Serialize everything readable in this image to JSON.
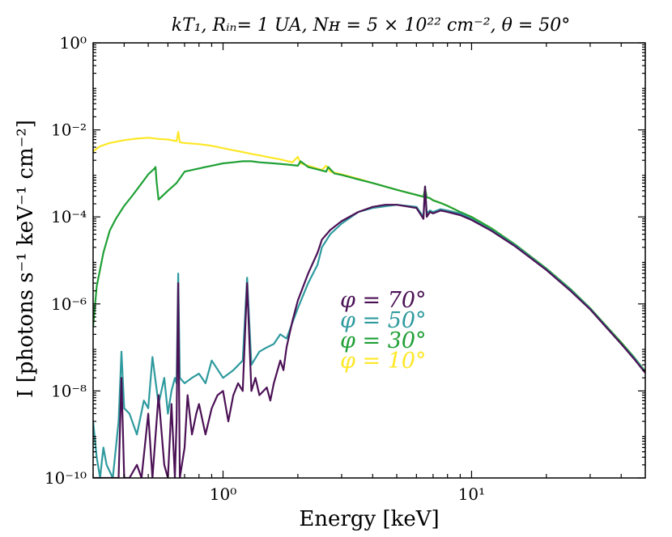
{
  "chart_data": {
    "type": "line",
    "title": "kT₁, Rᵢₙ= 1 UA, Nʜ = 5 × 10²² cm⁻², θ = 50°",
    "xlabel": "Energy [keV]",
    "ylabel": "I [photons s⁻¹ keV⁻¹ cm⁻²]",
    "xscale": "log",
    "yscale": "log",
    "xlim": [
      0.3,
      50
    ],
    "ylim": [
      1e-10,
      1
    ],
    "x_ticks": [
      {
        "value": 1,
        "label": "10⁰"
      },
      {
        "value": 10,
        "label": "10¹"
      }
    ],
    "y_ticks": [
      {
        "value": 1,
        "label": "10⁰"
      },
      {
        "value": 0.01,
        "label": "10⁻²"
      },
      {
        "value": 0.0001,
        "label": "10⁻⁴"
      },
      {
        "value": 1e-06,
        "label": "10⁻⁶"
      },
      {
        "value": 1e-08,
        "label": "10⁻⁸"
      },
      {
        "value": 1e-10,
        "label": "10⁻¹⁰"
      }
    ],
    "legend_position": "center",
    "series": [
      {
        "name": "φ = 10°",
        "color": "#fde725",
        "x": [
          0.3,
          0.32,
          0.35,
          0.4,
          0.45,
          0.5,
          0.55,
          0.6,
          0.65,
          0.66,
          0.67,
          0.7,
          0.8,
          0.9,
          1.0,
          1.1,
          1.2,
          1.3,
          1.4,
          1.5,
          1.7,
          1.9,
          2.0,
          2.05,
          2.2,
          2.5,
          2.6,
          2.7,
          3.0,
          3.5,
          4.0,
          5.0,
          6.0,
          6.4,
          6.5,
          6.6,
          6.8,
          7.0,
          7.5,
          8.0,
          9.0,
          10,
          12,
          15,
          20,
          25,
          30,
          35,
          40,
          45,
          50
        ],
        "y": [
          0.0032,
          0.0042,
          0.005,
          0.0058,
          0.0063,
          0.0066,
          0.0062,
          0.006,
          0.0055,
          0.009,
          0.0052,
          0.005,
          0.0047,
          0.0043,
          0.0038,
          0.0034,
          0.0031,
          0.0028,
          0.0026,
          0.0024,
          0.0021,
          0.0018,
          0.0024,
          0.0017,
          0.0015,
          0.0012,
          0.0015,
          0.0011,
          0.00095,
          0.00075,
          0.0006,
          0.00042,
          0.00032,
          0.00029,
          0.00045,
          0.00028,
          0.00027,
          0.00024,
          0.00021,
          0.00018,
          0.00013,
          0.0001,
          5.5e-05,
          2.3e-05,
          6.5e-06,
          2.2e-06,
          8e-07,
          3e-07,
          1.3e-07,
          6e-08,
          2.8e-08
        ]
      },
      {
        "name": "φ = 30°",
        "color": "#1fa035",
        "x": [
          0.3,
          0.31,
          0.33,
          0.35,
          0.37,
          0.4,
          0.43,
          0.46,
          0.5,
          0.53,
          0.535,
          0.54,
          0.55,
          0.6,
          0.65,
          0.7,
          0.8,
          0.9,
          1.0,
          1.1,
          1.2,
          1.3,
          1.4,
          1.6,
          1.8,
          2.0,
          2.05,
          2.2,
          2.6,
          2.65,
          2.8,
          3.0,
          3.5,
          4.0,
          5.0,
          6.0,
          6.4,
          6.5,
          6.6,
          6.8,
          7.0,
          7.5,
          8.0,
          9.0,
          10,
          12,
          15,
          20,
          25,
          30,
          35,
          40,
          45,
          50
        ],
        "y": [
          3e-07,
          2.5e-06,
          1.5e-05,
          4.8e-05,
          9e-05,
          0.00018,
          0.0003,
          0.0005,
          0.00095,
          0.0013,
          0.0014,
          0.00065,
          0.00025,
          0.0004,
          0.0006,
          0.0011,
          0.0013,
          0.0015,
          0.0017,
          0.0018,
          0.0019,
          0.0019,
          0.0018,
          0.0017,
          0.0016,
          0.0015,
          0.0019,
          0.0014,
          0.0011,
          0.0014,
          0.001,
          0.00092,
          0.00073,
          0.0006,
          0.00042,
          0.00032,
          0.00029,
          0.00045,
          0.00028,
          0.00027,
          0.00024,
          0.00021,
          0.00018,
          0.00013,
          0.0001,
          5.5e-05,
          2.3e-05,
          6.5e-06,
          2.2e-06,
          8e-07,
          3e-07,
          1.3e-07,
          6e-08,
          2.8e-08
        ]
      },
      {
        "name": "φ = 50°",
        "color": "#2e9a9e",
        "x": [
          0.3,
          0.31,
          0.32,
          0.33,
          0.34,
          0.36,
          0.38,
          0.39,
          0.4,
          0.42,
          0.45,
          0.48,
          0.5,
          0.52,
          0.55,
          0.58,
          0.6,
          0.62,
          0.64,
          0.65,
          0.66,
          0.67,
          0.7,
          0.75,
          0.8,
          0.85,
          0.9,
          1.0,
          1.1,
          1.2,
          1.25,
          1.3,
          1.4,
          1.5,
          1.6,
          1.7,
          1.8,
          2.0,
          2.2,
          2.4,
          2.5,
          2.7,
          3.0,
          3.5,
          4.0,
          5.0,
          6.0,
          6.4,
          6.5,
          6.6,
          6.8,
          7.0,
          7.5,
          8.0,
          9.0,
          10,
          12,
          15,
          20,
          25,
          30,
          35,
          40,
          45,
          50
        ],
        "y": [
          2e-09,
          3e-10,
          1e-10,
          5e-10,
          2e-10,
          1e-10,
          2e-09,
          8e-08,
          4e-09,
          3e-09,
          1e-09,
          6e-09,
          4e-09,
          6e-08,
          5e-09,
          2e-08,
          3e-09,
          1e-08,
          2e-08,
          1.5e-08,
          5e-06,
          2e-08,
          1.5e-08,
          2e-08,
          2.5e-08,
          1.5e-08,
          5e-08,
          2e-08,
          3e-08,
          5e-08,
          4e-06,
          4e-08,
          8e-08,
          1e-07,
          1.2e-07,
          2e-07,
          1.6e-07,
          8e-07,
          3e-06,
          8e-06,
          2e-05,
          4e-05,
          7e-05,
          0.00013,
          0.00016,
          0.00019,
          0.00017,
          0.0001,
          0.0005,
          0.00012,
          0.00014,
          0.00013,
          0.00015,
          0.00014,
          0.00012,
          9e-05,
          5e-05,
          2.2e-05,
          6.2e-06,
          2.1e-06,
          7.8e-07,
          2.9e-07,
          1.2e-07,
          5.8e-08,
          2.7e-08
        ]
      },
      {
        "name": "φ = 70°",
        "color": "#4b1155",
        "x": [
          0.3,
          0.33,
          0.35,
          0.38,
          0.39,
          0.4,
          0.42,
          0.45,
          0.47,
          0.5,
          0.52,
          0.55,
          0.58,
          0.6,
          0.62,
          0.64,
          0.65,
          0.66,
          0.67,
          0.7,
          0.72,
          0.75,
          0.78,
          0.8,
          0.85,
          0.9,
          0.95,
          1.0,
          1.05,
          1.1,
          1.15,
          1.2,
          1.25,
          1.3,
          1.35,
          1.4,
          1.5,
          1.55,
          1.6,
          1.7,
          1.75,
          1.8,
          1.9,
          2.0,
          2.2,
          2.4,
          2.5,
          2.7,
          3.0,
          3.5,
          4.0,
          4.5,
          5.0,
          6.0,
          6.4,
          6.5,
          6.6,
          6.8,
          7.0,
          7.5,
          8.0,
          9.0,
          10,
          12,
          15,
          20,
          25,
          30,
          35,
          40,
          45,
          50
        ],
        "y": [
          1e-10,
          1e-10,
          1e-10,
          1e-10,
          2e-08,
          1e-10,
          1e-10,
          2e-10,
          1e-10,
          3e-09,
          1e-10,
          8e-09,
          2e-10,
          1e-10,
          5e-09,
          1e-10,
          2e-09,
          3e-06,
          1e-10,
          5e-10,
          8e-09,
          1e-09,
          3e-09,
          5e-09,
          1e-09,
          4e-09,
          8e-09,
          1e-08,
          2e-09,
          8e-09,
          1.5e-08,
          1e-08,
          3e-06,
          1e-08,
          2e-08,
          8e-09,
          1.2e-08,
          6e-09,
          1.5e-08,
          5e-08,
          3e-08,
          1e-07,
          4e-07,
          1.2e-06,
          5e-06,
          1.5e-05,
          3e-05,
          5e-05,
          8e-05,
          0.00013,
          0.00017,
          0.00019,
          0.00019,
          0.00016,
          9e-05,
          0.0005,
          0.0001,
          0.00013,
          0.00012,
          0.00014,
          0.00013,
          0.00011,
          8.5e-05,
          4.8e-05,
          2.1e-05,
          6e-06,
          2e-06,
          7.5e-07,
          2.8e-07,
          1.2e-07,
          5.5e-08,
          2.6e-08
        ]
      }
    ],
    "legend": [
      {
        "label": "φ = 70°",
        "color": "#4b1155"
      },
      {
        "label": "φ = 50°",
        "color": "#2e9a9e"
      },
      {
        "label": "φ = 30°",
        "color": "#1fa035"
      },
      {
        "label": "φ = 10°",
        "color": "#fde725"
      }
    ]
  }
}
